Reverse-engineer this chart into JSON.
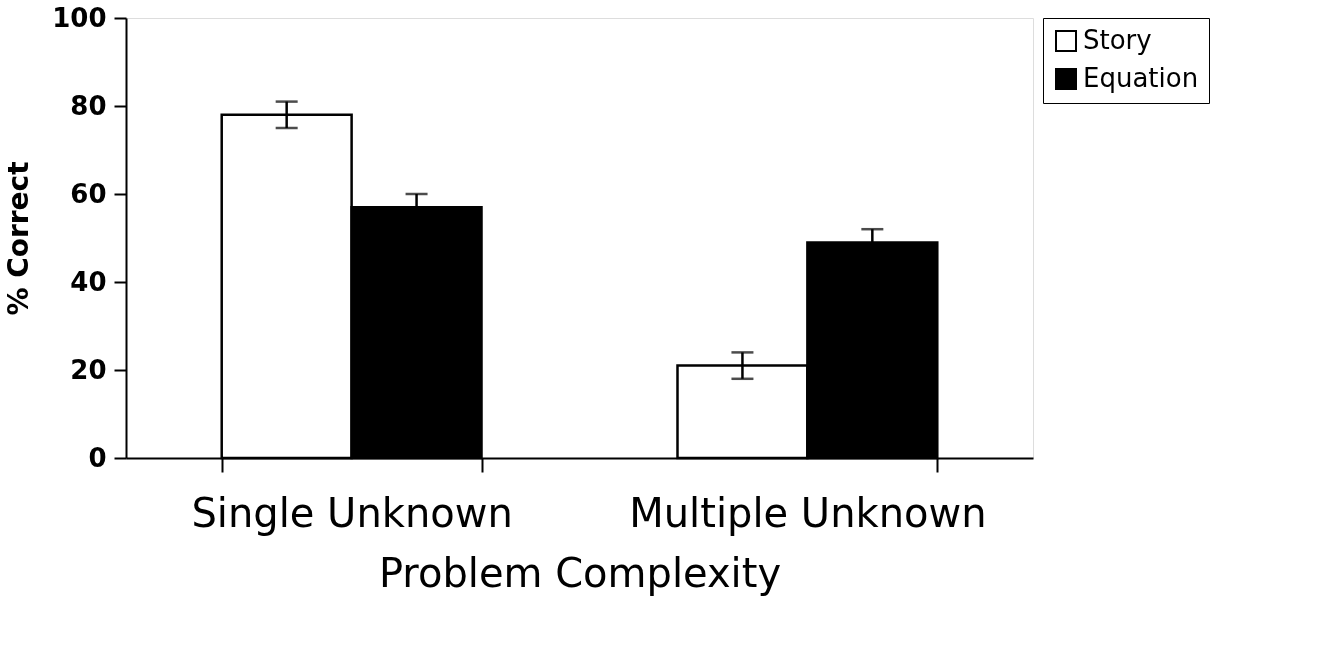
{
  "chart_data": {
    "type": "bar",
    "xlabel": "Problem Complexity",
    "ylabel": "% Correct",
    "categories": [
      "Single Unknown",
      "Multiple Unknown"
    ],
    "series": [
      {
        "name": "Story",
        "color": "#ffffff",
        "values": [
          78,
          21
        ],
        "errors": [
          3,
          3
        ]
      },
      {
        "name": "Equation",
        "color": "#000000",
        "values": [
          57,
          49
        ],
        "errors": [
          3,
          3
        ]
      }
    ],
    "ylim": [
      0,
      100
    ],
    "yticks": [
      0,
      20,
      40,
      60,
      80,
      100
    ],
    "grid": false,
    "legend": "right"
  }
}
